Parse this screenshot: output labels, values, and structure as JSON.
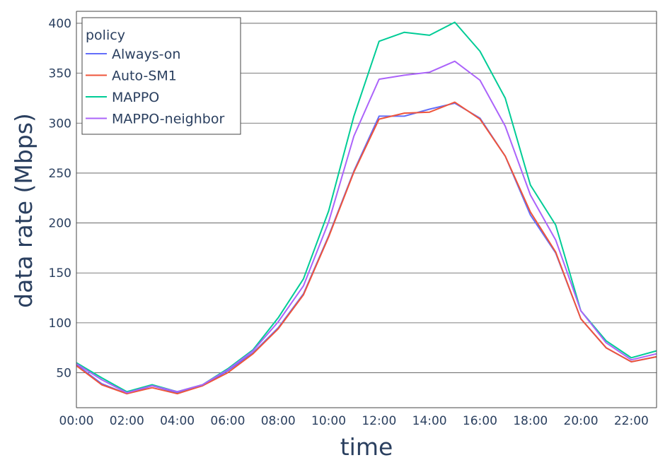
{
  "chart_data": {
    "type": "line",
    "xlabel": "time",
    "ylabel": "data rate (Mbps)",
    "x": [
      "00:00",
      "01:00",
      "02:00",
      "03:00",
      "04:00",
      "05:00",
      "06:00",
      "07:00",
      "08:00",
      "09:00",
      "10:00",
      "11:00",
      "12:00",
      "13:00",
      "14:00",
      "15:00",
      "16:00",
      "17:00",
      "18:00",
      "19:00",
      "20:00",
      "21:00",
      "22:00",
      "23:00"
    ],
    "x_tick_labels": [
      "00:00",
      "02:00",
      "04:00",
      "06:00",
      "08:00",
      "10:00",
      "12:00",
      "14:00",
      "16:00",
      "18:00",
      "20:00",
      "22:00"
    ],
    "y_ticks": [
      50,
      100,
      150,
      200,
      250,
      300,
      350,
      400
    ],
    "ylim": [
      15,
      412
    ],
    "grid": "horizontal",
    "legend": {
      "title": "policy",
      "position": "top-left"
    },
    "series": [
      {
        "name": "Always-on",
        "color": "#636efa",
        "values": [
          58,
          39,
          29,
          37,
          30,
          37,
          52,
          70,
          95,
          129,
          187,
          252,
          307,
          307,
          314,
          320,
          305,
          267,
          208,
          170,
          104,
          75,
          61,
          66
        ]
      },
      {
        "name": "Auto-SM1",
        "color": "#ef553b",
        "values": [
          57,
          38,
          29,
          35,
          29,
          37,
          50,
          69,
          94,
          128,
          186,
          251,
          304,
          310,
          311,
          321,
          304,
          267,
          211,
          171,
          104,
          75,
          61,
          66
        ]
      },
      {
        "name": "MAPPO",
        "color": "#00cc96",
        "values": [
          60,
          45,
          31,
          38,
          31,
          38,
          54,
          73,
          105,
          144,
          212,
          307,
          382,
          391,
          388,
          401,
          372,
          325,
          238,
          198,
          112,
          82,
          65,
          72
        ]
      },
      {
        "name": "MAPPO-neighbor",
        "color": "#ab63fa",
        "values": [
          59,
          43,
          30,
          37,
          31,
          38,
          53,
          72,
          101,
          137,
          201,
          287,
          344,
          348,
          351,
          362,
          343,
          297,
          228,
          183,
          112,
          80,
          63,
          69
        ]
      }
    ]
  }
}
